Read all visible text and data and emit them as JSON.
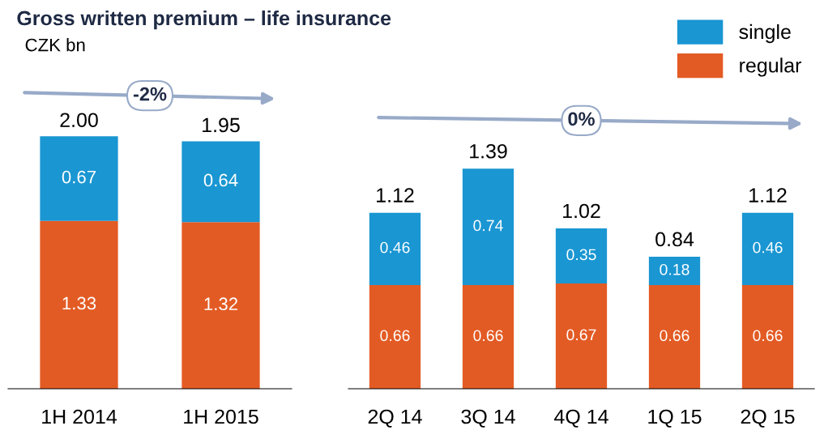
{
  "chart_data": [
    {
      "type": "bar",
      "title": "Gross written premium – life insurance",
      "subtitle": "CZK bn",
      "categories": [
        "1H 2014",
        "1H 2015"
      ],
      "stacked": true,
      "data_labels": true,
      "totals": [
        "2.00",
        "1.95"
      ],
      "annotations": [
        "-2%"
      ],
      "series": [
        {
          "color": "#e35b24",
          "values": [
            1.33,
            1.32
          ]
        },
        {
          "color": "#1a96d2",
          "values": [
            0.67,
            0.64
          ]
        }
      ]
    },
    {
      "type": "bar",
      "categories": [
        "2Q 14",
        "3Q 14",
        "4Q 14",
        "1Q 15",
        "2Q 15"
      ],
      "stacked": true,
      "data_labels": true,
      "totals": [
        "1.12",
        "1.39",
        "1.02",
        "0.84",
        "1.12"
      ],
      "annotations": [
        "0%"
      ],
      "legend": "top right",
      "series": [
        {
          "name": "regular",
          "color": "#e35b24",
          "values": [
            0.66,
            0.66,
            0.67,
            0.66,
            0.66
          ]
        },
        {
          "name": "single",
          "color": "#1a96d2",
          "values": [
            0.46,
            0.74,
            0.35,
            0.18,
            0.46
          ]
        }
      ]
    }
  ]
}
